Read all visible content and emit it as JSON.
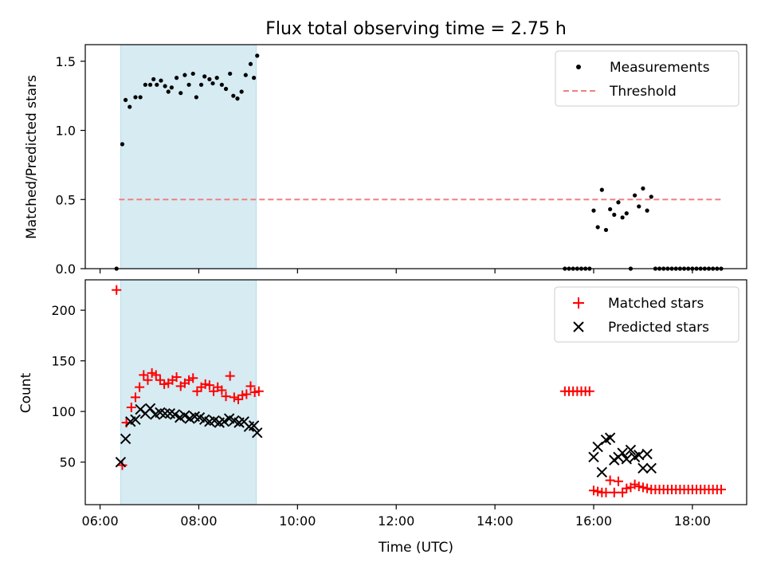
{
  "figure": {
    "title": "Flux total observing time = 2.75 h"
  },
  "chart_data": [
    {
      "type": "scatter",
      "panel": "top",
      "ylabel": "Matched/Predicted stars",
      "xlabel": "",
      "ylim": [
        0,
        1.62
      ],
      "yticks": [
        "0.0",
        "0.5",
        "1.0",
        "1.5"
      ],
      "ytick_values": [
        0,
        0.5,
        1.0,
        1.5
      ],
      "xlim": [
        "06:00",
        "19:00"
      ],
      "xtick_values": [
        "06:00",
        "08:00",
        "10:00",
        "12:00",
        "14:00",
        "16:00",
        "18:00"
      ],
      "shaded_interval": [
        "06:25",
        "09:10"
      ],
      "shade_color": "#add8e6",
      "threshold": 0.5,
      "threshold_range": [
        "06:23",
        "18:35"
      ],
      "legend_position": "top-right",
      "series": [
        {
          "name": "Measurements",
          "marker": "dot",
          "color": "#000000",
          "points": [
            [
              "06:20",
              0.0
            ],
            [
              "06:27",
              0.9
            ],
            [
              "06:31",
              1.22
            ],
            [
              "06:36",
              1.17
            ],
            [
              "06:43",
              1.24
            ],
            [
              "06:49",
              1.24
            ],
            [
              "06:55",
              1.33
            ],
            [
              "07:01",
              1.33
            ],
            [
              "07:05",
              1.37
            ],
            [
              "07:09",
              1.33
            ],
            [
              "07:14",
              1.36
            ],
            [
              "07:19",
              1.32
            ],
            [
              "07:23",
              1.28
            ],
            [
              "07:27",
              1.31
            ],
            [
              "07:33",
              1.38
            ],
            [
              "07:38",
              1.27
            ],
            [
              "07:43",
              1.4
            ],
            [
              "07:48",
              1.33
            ],
            [
              "07:53",
              1.41
            ],
            [
              "07:57",
              1.24
            ],
            [
              "08:03",
              1.33
            ],
            [
              "08:07",
              1.39
            ],
            [
              "08:13",
              1.37
            ],
            [
              "08:17",
              1.34
            ],
            [
              "08:22",
              1.38
            ],
            [
              "08:28",
              1.33
            ],
            [
              "08:33",
              1.3
            ],
            [
              "08:38",
              1.41
            ],
            [
              "08:42",
              1.25
            ],
            [
              "08:47",
              1.23
            ],
            [
              "08:52",
              1.28
            ],
            [
              "08:57",
              1.4
            ],
            [
              "09:03",
              1.48
            ],
            [
              "09:07",
              1.38
            ],
            [
              "09:11",
              1.54
            ],
            [
              "15:25",
              0.0
            ],
            [
              "15:30",
              0.0
            ],
            [
              "15:35",
              0.0
            ],
            [
              "15:40",
              0.0
            ],
            [
              "15:45",
              0.0
            ],
            [
              "15:50",
              0.0
            ],
            [
              "15:55",
              0.0
            ],
            [
              "16:00",
              0.42
            ],
            [
              "16:05",
              0.3
            ],
            [
              "16:10",
              0.57
            ],
            [
              "16:15",
              0.28
            ],
            [
              "16:20",
              0.43
            ],
            [
              "16:25",
              0.39
            ],
            [
              "16:30",
              0.48
            ],
            [
              "16:35",
              0.37
            ],
            [
              "16:40",
              0.4
            ],
            [
              "16:45",
              0.0
            ],
            [
              "16:50",
              0.53
            ],
            [
              "16:55",
              0.45
            ],
            [
              "17:00",
              0.58
            ],
            [
              "17:05",
              0.42
            ],
            [
              "17:10",
              0.52
            ],
            [
              "17:15",
              0.0
            ],
            [
              "17:20",
              0.0
            ],
            [
              "17:25",
              0.0
            ],
            [
              "17:30",
              0.0
            ],
            [
              "17:35",
              0.0
            ],
            [
              "17:40",
              0.0
            ],
            [
              "17:45",
              0.0
            ],
            [
              "17:50",
              0.0
            ],
            [
              "17:55",
              0.0
            ],
            [
              "18:00",
              0.0
            ],
            [
              "18:05",
              0.0
            ],
            [
              "18:10",
              0.0
            ],
            [
              "18:15",
              0.0
            ],
            [
              "18:20",
              0.0
            ],
            [
              "18:25",
              0.0
            ],
            [
              "18:30",
              0.0
            ],
            [
              "18:35",
              0.0
            ]
          ]
        },
        {
          "name": "Threshold",
          "marker": "dashed-line",
          "color": "#f08080"
        }
      ]
    },
    {
      "type": "scatter",
      "panel": "bottom",
      "ylabel": "Count",
      "xlabel": "Time (UTC)",
      "ylim": [
        8,
        230
      ],
      "yticks": [
        "50",
        "100",
        "150",
        "200"
      ],
      "ytick_values": [
        50,
        100,
        150,
        200
      ],
      "xlim": [
        "06:00",
        "19:00"
      ],
      "xticks": [
        "06:00",
        "08:00",
        "10:00",
        "12:00",
        "14:00",
        "16:00",
        "18:00"
      ],
      "xtick_values": [
        "06:00",
        "08:00",
        "10:00",
        "12:00",
        "14:00",
        "16:00",
        "18:00"
      ],
      "shaded_interval": [
        "06:25",
        "09:10"
      ],
      "shade_color": "#add8e6",
      "legend_position": "top-right",
      "series": [
        {
          "name": "Matched stars",
          "marker": "plus",
          "color": "#ff0000",
          "points": [
            [
              "06:20",
              220
            ],
            [
              "06:27",
              47
            ],
            [
              "06:32",
              89
            ],
            [
              "06:38",
              104
            ],
            [
              "06:43",
              114
            ],
            [
              "06:48",
              124
            ],
            [
              "06:53",
              136
            ],
            [
              "06:58",
              131
            ],
            [
              "07:03",
              138
            ],
            [
              "07:08",
              136
            ],
            [
              "07:13",
              131
            ],
            [
              "07:18",
              127
            ],
            [
              "07:23",
              128
            ],
            [
              "07:28",
              131
            ],
            [
              "07:33",
              134
            ],
            [
              "07:38",
              125
            ],
            [
              "07:43",
              128
            ],
            [
              "07:48",
              131
            ],
            [
              "07:53",
              133
            ],
            [
              "07:58",
              120
            ],
            [
              "08:03",
              124
            ],
            [
              "08:08",
              127
            ],
            [
              "08:13",
              126
            ],
            [
              "08:18",
              120
            ],
            [
              "08:23",
              124
            ],
            [
              "08:28",
              121
            ],
            [
              "08:33",
              115
            ],
            [
              "08:38",
              135
            ],
            [
              "08:43",
              114
            ],
            [
              "08:48",
              112
            ],
            [
              "08:53",
              116
            ],
            [
              "08:58",
              117
            ],
            [
              "09:03",
              125
            ],
            [
              "09:08",
              119
            ],
            [
              "09:13",
              120
            ],
            [
              "15:25",
              120
            ],
            [
              "15:30",
              120
            ],
            [
              "15:35",
              120
            ],
            [
              "15:40",
              120
            ],
            [
              "15:45",
              120
            ],
            [
              "15:50",
              120
            ],
            [
              "15:55",
              120
            ],
            [
              "16:00",
              22
            ],
            [
              "16:05",
              21
            ],
            [
              "16:10",
              20
            ],
            [
              "16:15",
              20
            ],
            [
              "16:20",
              32
            ],
            [
              "16:25",
              20
            ],
            [
              "16:30",
              31
            ],
            [
              "16:35",
              20
            ],
            [
              "16:40",
              24
            ],
            [
              "16:45",
              25
            ],
            [
              "16:50",
              28
            ],
            [
              "16:55",
              26
            ],
            [
              "17:00",
              25
            ],
            [
              "17:05",
              24
            ],
            [
              "17:10",
              23
            ],
            [
              "17:15",
              23
            ],
            [
              "17:20",
              23
            ],
            [
              "17:25",
              23
            ],
            [
              "17:30",
              23
            ],
            [
              "17:35",
              23
            ],
            [
              "17:40",
              23
            ],
            [
              "17:45",
              23
            ],
            [
              "17:50",
              23
            ],
            [
              "17:55",
              23
            ],
            [
              "18:00",
              23
            ],
            [
              "18:05",
              23
            ],
            [
              "18:10",
              23
            ],
            [
              "18:15",
              23
            ],
            [
              "18:20",
              23
            ],
            [
              "18:25",
              23
            ],
            [
              "18:30",
              23
            ],
            [
              "18:35",
              23
            ]
          ]
        },
        {
          "name": "Predicted stars",
          "marker": "x",
          "color": "#000000",
          "points": [
            [
              "06:25",
              50
            ],
            [
              "06:31",
              73
            ],
            [
              "06:37",
              90
            ],
            [
              "06:43",
              92
            ],
            [
              "06:49",
              102
            ],
            [
              "06:55",
              98
            ],
            [
              "07:01",
              103
            ],
            [
              "07:07",
              97
            ],
            [
              "07:13",
              99
            ],
            [
              "07:19",
              98
            ],
            [
              "07:25",
              98
            ],
            [
              "07:31",
              97
            ],
            [
              "07:37",
              94
            ],
            [
              "07:43",
              96
            ],
            [
              "07:49",
              93
            ],
            [
              "07:55",
              95
            ],
            [
              "08:01",
              94
            ],
            [
              "08:07",
              92
            ],
            [
              "08:13",
              90
            ],
            [
              "08:19",
              91
            ],
            [
              "08:25",
              89
            ],
            [
              "08:31",
              90
            ],
            [
              "08:37",
              93
            ],
            [
              "08:43",
              91
            ],
            [
              "08:49",
              89
            ],
            [
              "08:55",
              90
            ],
            [
              "09:01",
              85
            ],
            [
              "09:07",
              86
            ],
            [
              "09:11",
              79
            ],
            [
              "16:00",
              55
            ],
            [
              "16:05",
              65
            ],
            [
              "16:10",
              40
            ],
            [
              "16:15",
              72
            ],
            [
              "16:20",
              74
            ],
            [
              "16:25",
              52
            ],
            [
              "16:30",
              55
            ],
            [
              "16:35",
              59
            ],
            [
              "16:40",
              53
            ],
            [
              "16:45",
              62
            ],
            [
              "16:50",
              55
            ],
            [
              "16:55",
              57
            ],
            [
              "17:00",
              44
            ],
            [
              "17:05",
              58
            ],
            [
              "17:10",
              44
            ]
          ]
        }
      ]
    }
  ]
}
